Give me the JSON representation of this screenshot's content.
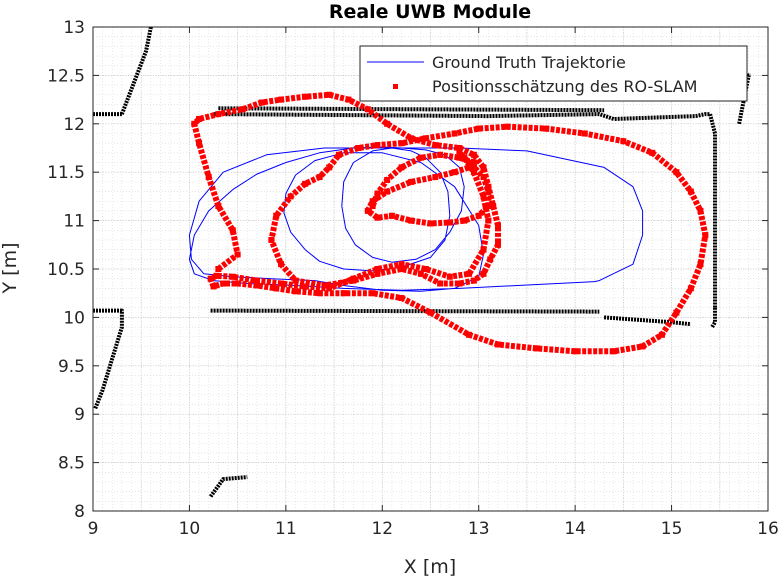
{
  "chart_data": {
    "type": "line",
    "title": "Reale UWB Module",
    "xlabel": "X [m]",
    "ylabel": "Y [m]",
    "xlim": [
      9,
      16
    ],
    "ylim": [
      8,
      13
    ],
    "xticks": [
      "9",
      "10",
      "11",
      "12",
      "13",
      "14",
      "15",
      "16"
    ],
    "yticks": [
      "8",
      "8.5",
      "9",
      "9.5",
      "10",
      "10.5",
      "11",
      "11.5",
      "12",
      "12.5",
      "13"
    ],
    "grid": true,
    "minor_grid": true,
    "legend_position": "top-right",
    "colors": {
      "ground_truth": "#0000ff",
      "estimate": "#ff0000",
      "map": "#000000"
    },
    "map_walls": [
      {
        "x": [
          9.3,
          9.55,
          9.6
        ],
        "y": [
          12.1,
          12.75,
          13.0
        ]
      },
      {
        "x": [
          9.0,
          9.3
        ],
        "y": [
          12.1,
          12.1
        ]
      },
      {
        "x": [
          10.25,
          13.1,
          14.25,
          14.4,
          15.25,
          15.35,
          15.4
        ],
        "y": [
          12.1,
          12.08,
          12.1,
          12.05,
          12.08,
          12.1,
          12.1
        ]
      },
      {
        "x": [
          10.3,
          14.3
        ],
        "y": [
          12.16,
          12.14
        ]
      },
      {
        "x": [
          15.4,
          15.45,
          15.45
        ],
        "y": [
          12.1,
          11.9,
          10.1
        ]
      },
      {
        "x": [
          15.45,
          15.45,
          15.42
        ],
        "y": [
          10.1,
          9.95,
          9.9
        ]
      },
      {
        "x": [
          15.7,
          15.8,
          15.82
        ],
        "y": [
          12.0,
          12.5,
          12.5
        ]
      },
      {
        "x": [
          10.22,
          14.25
        ],
        "y": [
          10.07,
          10.06
        ]
      },
      {
        "x": [
          14.3,
          15.0,
          15.2
        ],
        "y": [
          10.0,
          9.95,
          9.93
        ]
      },
      {
        "x": [
          9.0,
          9.3,
          9.3,
          9.1,
          9.02
        ],
        "y": [
          10.07,
          10.07,
          9.9,
          9.25,
          9.05
        ]
      },
      {
        "x": [
          10.22,
          10.35,
          10.6
        ],
        "y": [
          8.15,
          8.33,
          8.35
        ]
      }
    ],
    "series": [
      {
        "name": "Ground Truth Trajektorie",
        "style": "line",
        "x": [
          14.25,
          14.6,
          14.7,
          14.7,
          14.6,
          14.3,
          13.5,
          12.8,
          11.4,
          10.8,
          10.35,
          10.1,
          10.0,
          10.02,
          10.15,
          10.45,
          10.85,
          11.3,
          11.6,
          12.0,
          12.4,
          12.75,
          13.0,
          13.05,
          13.0,
          12.75,
          12.4,
          12.0,
          11.6,
          11.3,
          11.1,
          11.0,
          10.98,
          11.05,
          11.2,
          11.35,
          11.6,
          11.9,
          12.2,
          12.5,
          12.65,
          12.7,
          12.68,
          12.6,
          12.45,
          12.3,
          12.1,
          11.9,
          11.7,
          11.6,
          11.58,
          11.62,
          11.72,
          11.9,
          12.1,
          12.35,
          12.55,
          12.7,
          12.82,
          12.85,
          12.8,
          12.65,
          12.45,
          12.2,
          12.0,
          11.7,
          11.35,
          11.0,
          10.7,
          10.45,
          10.2,
          10.05,
          10.0,
          10.05,
          10.25,
          10.6,
          11.1,
          11.6,
          12.2,
          12.8,
          13.4,
          14.0,
          14.2,
          14.25
        ],
        "y": [
          10.38,
          10.55,
          10.85,
          11.1,
          11.35,
          11.55,
          11.72,
          11.75,
          11.75,
          11.68,
          11.5,
          11.2,
          10.85,
          10.6,
          10.45,
          10.42,
          10.4,
          10.38,
          10.33,
          10.28,
          10.27,
          10.3,
          10.42,
          10.65,
          10.95,
          11.35,
          11.6,
          11.7,
          11.7,
          11.62,
          11.47,
          11.28,
          11.08,
          10.88,
          10.7,
          10.58,
          10.5,
          10.48,
          10.52,
          10.62,
          10.8,
          11.05,
          11.3,
          11.5,
          11.65,
          11.72,
          11.75,
          11.72,
          11.6,
          11.4,
          11.15,
          10.92,
          10.75,
          10.62,
          10.57,
          10.6,
          10.7,
          10.88,
          11.1,
          11.35,
          11.55,
          11.68,
          11.73,
          11.75,
          11.76,
          11.75,
          11.7,
          11.6,
          11.48,
          11.32,
          11.1,
          10.85,
          10.6,
          10.45,
          10.38,
          10.35,
          10.33,
          10.3,
          10.28,
          10.3,
          10.33,
          10.36,
          10.37,
          10.38
        ]
      },
      {
        "name": "Positionsschätzung des RO-SLAM",
        "style": "markers",
        "x": [
          10.3,
          10.5,
          10.45,
          10.3,
          10.2,
          10.1,
          10.05,
          10.1,
          10.3,
          10.55,
          10.75,
          10.95,
          11.2,
          11.45,
          11.65,
          11.85,
          12.05,
          12.3,
          12.55,
          12.8,
          12.95,
          13.05,
          13.1,
          13.15,
          13.2,
          13.2,
          13.12,
          13.05,
          12.95,
          12.8,
          12.6,
          12.4,
          12.2,
          11.95,
          11.7,
          11.4,
          11.1,
          10.95,
          10.85,
          10.9,
          11.05,
          11.2,
          11.35,
          11.45,
          11.55,
          11.75,
          11.95,
          12.2,
          12.45,
          12.75,
          13.0,
          13.3,
          13.7,
          14.1,
          14.5,
          14.8,
          15.05,
          15.2,
          15.3,
          15.35,
          15.3,
          15.2,
          15.05,
          14.9,
          14.7,
          14.4,
          14.0,
          13.6,
          13.2,
          12.9,
          12.5,
          12.2,
          11.9,
          11.6,
          11.35,
          11.1,
          10.9,
          10.7,
          10.5,
          10.35,
          10.25,
          10.22,
          10.28,
          10.45,
          10.7,
          10.95,
          11.2,
          11.45,
          11.7,
          11.95,
          12.2,
          12.45,
          12.7,
          12.9,
          13.05,
          13.1,
          13.05,
          12.95,
          12.85,
          12.8,
          12.85,
          12.95,
          13.05,
          13.1,
          13.1,
          13.0,
          12.85,
          12.7,
          12.5,
          12.3,
          12.1,
          11.95,
          11.85,
          11.9,
          12.05,
          12.3,
          12.55,
          12.75,
          12.9,
          12.95,
          12.8,
          12.6,
          12.4,
          12.2,
          12.05,
          11.95,
          11.9
        ],
        "y": [
          10.5,
          10.65,
          10.9,
          11.15,
          11.45,
          11.8,
          12.0,
          12.05,
          12.1,
          12.15,
          12.22,
          12.25,
          12.28,
          12.3,
          12.25,
          12.15,
          12.0,
          11.85,
          11.78,
          11.75,
          11.68,
          11.55,
          11.35,
          11.15,
          10.95,
          10.75,
          10.6,
          10.45,
          10.38,
          10.35,
          10.35,
          10.45,
          10.5,
          10.45,
          10.38,
          10.33,
          10.38,
          10.55,
          10.8,
          11.05,
          11.25,
          11.38,
          11.45,
          11.55,
          11.68,
          11.75,
          11.78,
          11.8,
          11.85,
          11.9,
          11.95,
          11.97,
          11.95,
          11.9,
          11.82,
          11.7,
          11.5,
          11.3,
          11.1,
          10.85,
          10.55,
          10.3,
          10.05,
          9.82,
          9.7,
          9.65,
          9.65,
          9.68,
          9.72,
          9.82,
          10.05,
          10.2,
          10.25,
          10.25,
          10.25,
          10.27,
          10.3,
          10.33,
          10.35,
          10.35,
          10.32,
          10.4,
          10.43,
          10.42,
          10.38,
          10.35,
          10.32,
          10.3,
          10.4,
          10.5,
          10.55,
          10.5,
          10.42,
          10.45,
          10.7,
          11.0,
          11.25,
          11.5,
          11.65,
          11.7,
          11.65,
          11.55,
          11.45,
          11.3,
          11.15,
          11.05,
          11.0,
          10.98,
          10.97,
          11.0,
          11.05,
          11.03,
          11.1,
          11.2,
          11.3,
          11.4,
          11.45,
          11.5,
          11.55,
          11.6,
          11.65,
          11.68,
          11.65,
          11.55,
          11.42,
          11.28,
          11.15
        ]
      }
    ]
  }
}
